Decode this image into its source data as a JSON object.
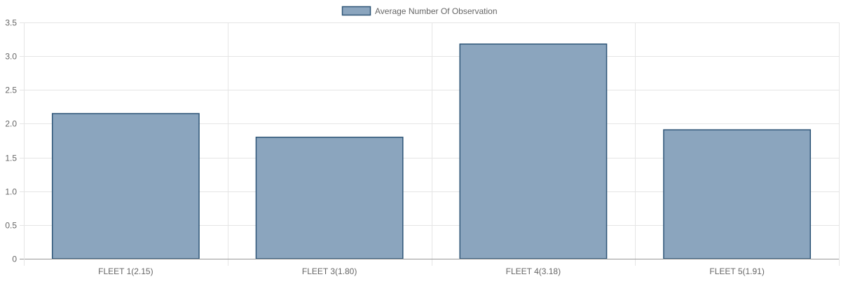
{
  "chart_data": {
    "type": "bar",
    "categories": [
      "FLEET 1(2.15)",
      "FLEET 3(1.80)",
      "FLEET 4(3.18)",
      "FLEET 5(1.91)"
    ],
    "series": [
      {
        "name": "Average Number Of Observation",
        "values": [
          2.15,
          1.8,
          3.18,
          1.91
        ]
      }
    ],
    "ylim": [
      0,
      3.5
    ],
    "yticks": [
      "0",
      "0.5",
      "1.0",
      "1.5",
      "2.0",
      "2.5",
      "3.0",
      "3.5"
    ],
    "title": "",
    "xlabel": "",
    "ylabel": "",
    "grid": true,
    "legend_position": "top-center",
    "colors": {
      "bar_fill": "#8ba5be",
      "bar_stroke": "#2e5577",
      "grid": "#e5e5e5",
      "axis": "#999999",
      "text": "#666666"
    }
  }
}
